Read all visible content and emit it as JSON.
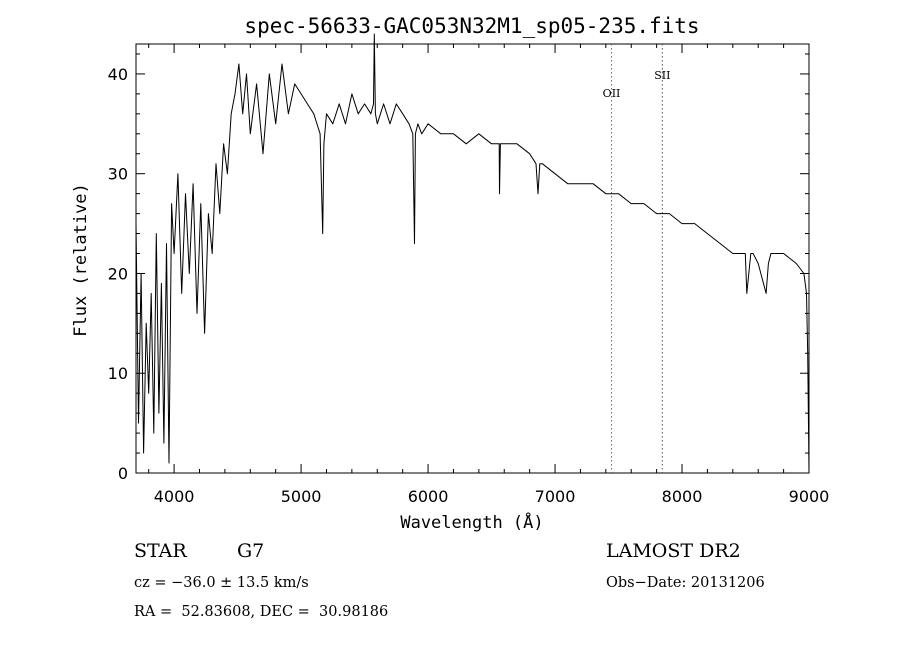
{
  "chart_data": {
    "type": "line",
    "title": "spec-56633-GAC053N32M1_sp05-235.fits",
    "xlabel": "Wavelength (Å)",
    "ylabel": "Flux (relative)",
    "xlim": [
      3700,
      9000
    ],
    "ylim": [
      0,
      43
    ],
    "xticks": [
      4000,
      5000,
      6000,
      7000,
      8000,
      9000
    ],
    "yticks": [
      0,
      10,
      20,
      30,
      40
    ],
    "grid": false,
    "series": [
      {
        "x": [
          3700,
          3720,
          3740,
          3760,
          3780,
          3800,
          3820,
          3840,
          3860,
          3880,
          3900,
          3920,
          3940,
          3960,
          3980,
          4000,
          4030,
          4060,
          4090,
          4120,
          4150,
          4180,
          4210,
          4240,
          4270,
          4300,
          4330,
          4360,
          4390,
          4420,
          4450,
          4480,
          4510,
          4540,
          4570,
          4600,
          4650,
          4700,
          4750,
          4800,
          4850,
          4900,
          4950,
          5000,
          5050,
          5100,
          5150,
          5170,
          5180,
          5200,
          5250,
          5300,
          5350,
          5400,
          5450,
          5500,
          5550,
          5570,
          5577,
          5585,
          5600,
          5650,
          5700,
          5750,
          5800,
          5850,
          5880,
          5893,
          5900,
          5920,
          5950,
          6000,
          6100,
          6200,
          6300,
          6400,
          6500,
          6560,
          6563,
          6570,
          6600,
          6700,
          6800,
          6850,
          6866,
          6880,
          6900,
          7000,
          7100,
          7200,
          7300,
          7400,
          7500,
          7600,
          7700,
          7800,
          7900,
          8000,
          8100,
          8200,
          8300,
          8400,
          8450,
          8498,
          8510,
          8542,
          8560,
          8600,
          8662,
          8680,
          8700,
          8800,
          8900,
          8960,
          8980,
          8990,
          9000
        ],
        "y": [
          25,
          5,
          20,
          2,
          15,
          8,
          18,
          4,
          24,
          6,
          19,
          3,
          23,
          1,
          27,
          22,
          30,
          18,
          28,
          20,
          29,
          16,
          27,
          14,
          26,
          22,
          31,
          26,
          33,
          30,
          36,
          38,
          41,
          36,
          40,
          34,
          39,
          32,
          40,
          35,
          41,
          36,
          39,
          38,
          37,
          36,
          34,
          24,
          33,
          36,
          35,
          37,
          35,
          38,
          36,
          37,
          36,
          37,
          44,
          36,
          35,
          37,
          35,
          37,
          36,
          35,
          34,
          23,
          34,
          35,
          34,
          35,
          34,
          34,
          33,
          34,
          33,
          33,
          28,
          33,
          33,
          33,
          32,
          31,
          28,
          31,
          31,
          30,
          29,
          29,
          29,
          28,
          28,
          27,
          27,
          26,
          26,
          25,
          25,
          24,
          23,
          22,
          22,
          22,
          18,
          22,
          22,
          21,
          18,
          21,
          22,
          22,
          21,
          20,
          18,
          12,
          0
        ]
      }
    ],
    "annotations": [
      {
        "label": "OII",
        "x": 7445,
        "line": true
      },
      {
        "label": "SII",
        "x": 7845,
        "line": true
      }
    ]
  },
  "info": {
    "class_label": "STAR",
    "subclass": "G7",
    "survey": "LAMOST DR2",
    "cz_line": "cz = −36.0 ± 13.5 km/s",
    "obs_date": "Obs−Date: 20131206",
    "radec_line": "RA =  52.83608, DEC =  30.98186"
  }
}
